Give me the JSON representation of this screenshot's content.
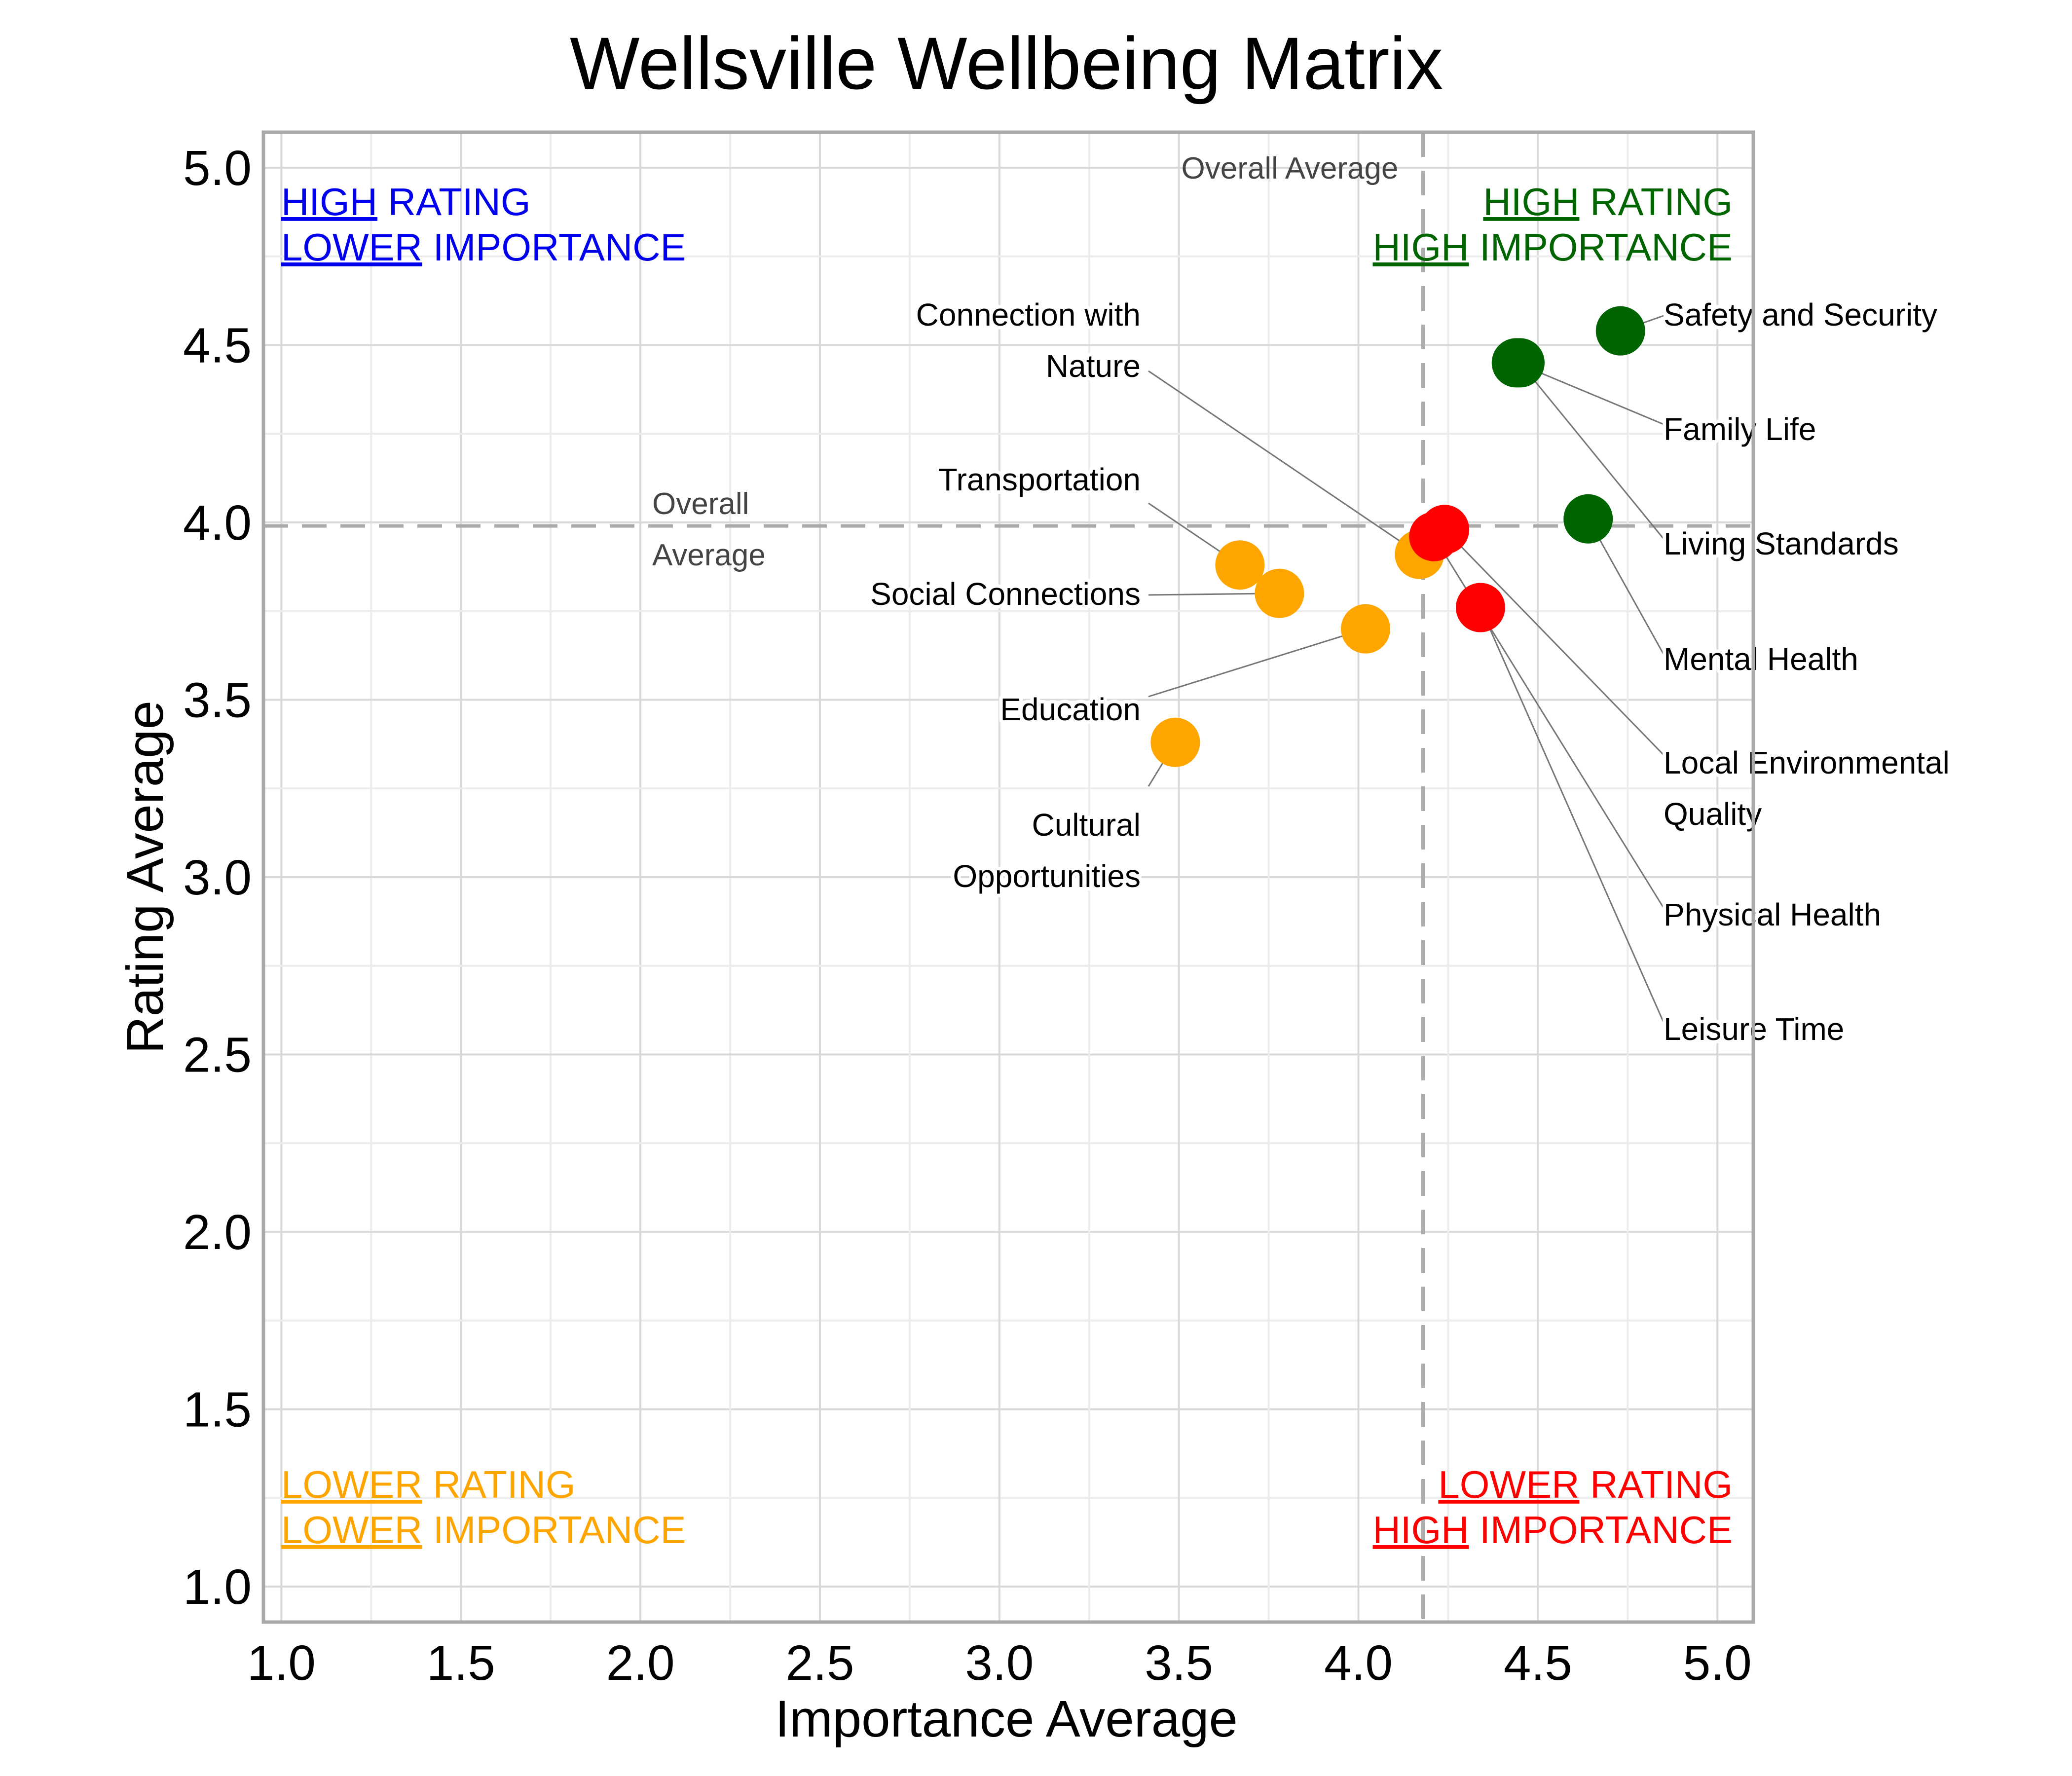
{
  "chart_data": {
    "type": "scatter",
    "title": "Wellsville Wellbeing Matrix",
    "xlabel": "Importance Average",
    "ylabel": "Rating Average",
    "xlim": [
      0.95,
      5.1
    ],
    "ylim": [
      0.9,
      5.1
    ],
    "x_ticks": [
      "1.0",
      "1.5",
      "2.0",
      "2.5",
      "3.0",
      "3.5",
      "4.0",
      "4.5",
      "5.0"
    ],
    "y_ticks": [
      "1.0",
      "1.5",
      "2.0",
      "2.5",
      "3.0",
      "3.5",
      "4.0",
      "4.5",
      "5.0"
    ],
    "grid": true,
    "reference_lines": {
      "x_average": 4.18,
      "y_average": 3.99,
      "x_label": "Overall Average",
      "y_label_lines": [
        "Overall",
        "Average"
      ]
    },
    "quadrants": {
      "top_left": {
        "color": "#0000ee",
        "line1": {
          "u": "HIGH",
          "rest": " RATING"
        },
        "line2": {
          "u": "LOWER",
          "rest": " IMPORTANCE"
        }
      },
      "top_right": {
        "color": "#006400",
        "line1": {
          "u": "HIGH",
          "rest": " RATING"
        },
        "line2": {
          "u": "HIGH",
          "rest": " IMPORTANCE"
        }
      },
      "bottom_left": {
        "color": "#ffa500",
        "line1": {
          "u": "LOWER",
          "rest": " RATING"
        },
        "line2": {
          "u": "LOWER",
          "rest": " IMPORTANCE"
        }
      },
      "bottom_right": {
        "color": "#ff0000",
        "line1": {
          "u": "LOWER",
          "rest": " RATING"
        },
        "line2": {
          "u": "HIGH",
          "rest": " IMPORTANCE"
        }
      }
    },
    "colors": {
      "green": "#006400",
      "orange": "#ffa500",
      "red": "#ff0000"
    },
    "points": [
      {
        "lines": [
          "Safety and Security"
        ],
        "x": 4.73,
        "y": 4.54,
        "color": "#006400"
      },
      {
        "lines": [
          "Family Life"
        ],
        "x": 4.44,
        "y": 4.45,
        "color": "#006400"
      },
      {
        "lines": [
          "Living Standards"
        ],
        "x": 4.45,
        "y": 4.45,
        "color": "#006400"
      },
      {
        "lines": [
          "Mental Health"
        ],
        "x": 4.64,
        "y": 4.01,
        "color": "#006400"
      },
      {
        "lines": [
          "Local Environmental",
          "Quality"
        ],
        "x": 4.24,
        "y": 3.98,
        "color": "#ff0000"
      },
      {
        "lines": [
          "Physical Health"
        ],
        "x": 4.21,
        "y": 3.96,
        "color": "#ff0000"
      },
      {
        "lines": [
          "Leisure Time"
        ],
        "x": 4.34,
        "y": 3.76,
        "color": "#ff0000"
      },
      {
        "lines": [
          "Connection with",
          "Nature"
        ],
        "x": 4.17,
        "y": 3.91,
        "color": "#ffa500"
      },
      {
        "lines": [
          "Transportation"
        ],
        "x": 3.67,
        "y": 3.88,
        "color": "#ffa500"
      },
      {
        "lines": [
          "Social Connections"
        ],
        "x": 3.78,
        "y": 3.8,
        "color": "#ffa500"
      },
      {
        "lines": [
          "Education"
        ],
        "x": 4.02,
        "y": 3.7,
        "color": "#ffa500"
      },
      {
        "lines": [
          "Cultural",
          "Opportunities"
        ],
        "x": 3.49,
        "y": 3.38,
        "color": "#ffa500"
      }
    ]
  }
}
